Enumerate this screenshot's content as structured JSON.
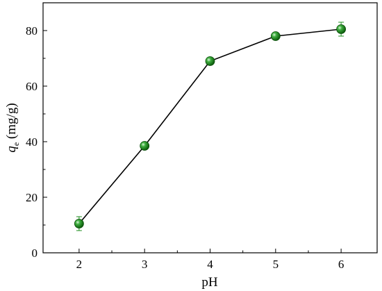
{
  "chart_data": {
    "type": "line",
    "xlabel": "pH",
    "ylabel_main": "q",
    "ylabel_sub": "e",
    "ylabel_unit": " (mg/g)",
    "xlim": [
      1.45,
      6.55
    ],
    "ylim": [
      0,
      90
    ],
    "x_ticks": [
      2,
      3,
      4,
      5,
      6
    ],
    "y_ticks": [
      0,
      20,
      40,
      60,
      80
    ],
    "grid": false,
    "marker_color": "#1e8c1e",
    "line_color": "#000000",
    "errorbar_color": "#1e8c1e",
    "series": [
      {
        "x": [
          2,
          3,
          4,
          5,
          6
        ],
        "y": [
          10.5,
          38.5,
          69.0,
          78.0,
          80.5
        ],
        "yerr": [
          2.5,
          0.8,
          0.8,
          0.8,
          2.5
        ]
      }
    ]
  }
}
